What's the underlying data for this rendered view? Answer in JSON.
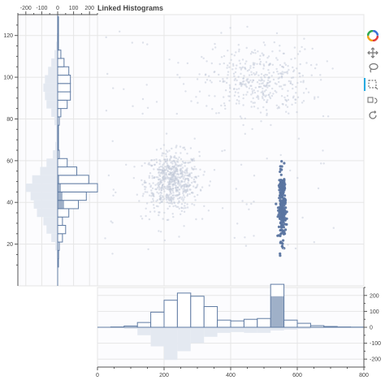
{
  "title": "Linked Histograms",
  "colors": {
    "hist": "#5f7ba3",
    "hist_fill": "#ffffff",
    "bg_hist": "#e4e9f1",
    "point": "#c2cbd9",
    "point_selected": "#5a74a0",
    "toolbar_active": "#26aae1"
  },
  "toolbar": [
    "logo-icon",
    "pan-icon",
    "lasso-icon",
    "box-select-icon",
    "reset-icon",
    "help-icon"
  ],
  "chart_data": [
    {
      "type": "scatter",
      "title": "Linked Histograms",
      "xlim": [
        0,
        800
      ],
      "ylim": [
        0,
        130
      ],
      "x_ticks": [
        "0",
        "200",
        "400",
        "600",
        "800"
      ],
      "y_ticks": [
        "20",
        "40",
        "60",
        "80",
        "100",
        "120"
      ],
      "clusters": [
        {
          "name": "",
          "center": [
            225,
            50
          ],
          "spread": [
            40,
            7
          ],
          "count": 650,
          "selected": false
        },
        {
          "name": "",
          "center": [
            480,
            98
          ],
          "spread": [
            80,
            8
          ],
          "count": 380,
          "selected": false
        },
        {
          "name": "",
          "center": [
            555,
            38
          ],
          "spread": [
            5,
            8
          ],
          "count": 250,
          "selected": true
        },
        {
          "name": "",
          "center": [
            400,
            70
          ],
          "spread": [
            230,
            35
          ],
          "count": 110,
          "selected": false
        }
      ]
    },
    {
      "type": "bar",
      "orientation": "horizontal-axis-x",
      "xlim": [
        0,
        800
      ],
      "ylim": [
        -250,
        250
      ],
      "y_ticks": [
        "200",
        "100",
        "0",
        "-100",
        "-200"
      ],
      "bin_starts": [
        40,
        80,
        120,
        160,
        200,
        240,
        280,
        320,
        360,
        400,
        440,
        480,
        520,
        560,
        600,
        640,
        680,
        720,
        760
      ],
      "bin_width": 40,
      "values_all": [
        2,
        8,
        30,
        95,
        170,
        215,
        195,
        130,
        45,
        40,
        50,
        55,
        270,
        45,
        25,
        10,
        5,
        2,
        1
      ],
      "values_selected": [
        0,
        0,
        0,
        0,
        0,
        0,
        0,
        0,
        0,
        0,
        0,
        0,
        195,
        0,
        0,
        0,
        0,
        0,
        0
      ],
      "values_background": [
        -2,
        -8,
        -50,
        -120,
        -205,
        -150,
        -100,
        -60,
        -35,
        -30,
        -35,
        -35,
        -20,
        -15,
        -10,
        -5,
        -3,
        -2,
        -1
      ]
    },
    {
      "type": "bar",
      "orientation": "vertical-axis-y",
      "xlim": [
        -250,
        250
      ],
      "ylim": [
        0,
        130
      ],
      "x_ticks": [
        "-200",
        "-100",
        "0",
        "100",
        "200"
      ],
      "bin_starts": [
        9,
        13,
        17,
        21,
        25,
        29,
        33,
        37,
        41,
        45,
        49,
        53,
        57,
        61,
        65,
        69,
        73,
        77,
        81,
        85,
        89,
        93,
        97,
        101,
        105,
        109,
        113,
        117,
        121,
        125
      ],
      "bin_width": 4,
      "values_all": [
        5,
        6,
        10,
        30,
        50,
        30,
        70,
        130,
        180,
        250,
        195,
        120,
        60,
        10,
        5,
        5,
        5,
        10,
        20,
        60,
        80,
        80,
        80,
        70,
        40,
        20,
        5,
        5,
        5,
        5
      ],
      "values_selected": [
        0,
        0,
        0,
        0,
        0,
        0,
        0,
        40,
        30,
        20,
        10,
        0,
        0,
        0,
        0,
        0,
        0,
        0,
        0,
        0,
        0,
        0,
        0,
        0,
        0,
        0,
        0,
        0,
        0,
        0
      ],
      "values_background": [
        -3,
        -5,
        -15,
        -40,
        -70,
        -90,
        -130,
        -150,
        -170,
        -200,
        -160,
        -110,
        -70,
        -30,
        -15,
        -10,
        -10,
        -20,
        -40,
        -70,
        -80,
        -90,
        -80,
        -60,
        -40,
        -20,
        -10,
        -5,
        -3,
        -2
      ]
    }
  ]
}
